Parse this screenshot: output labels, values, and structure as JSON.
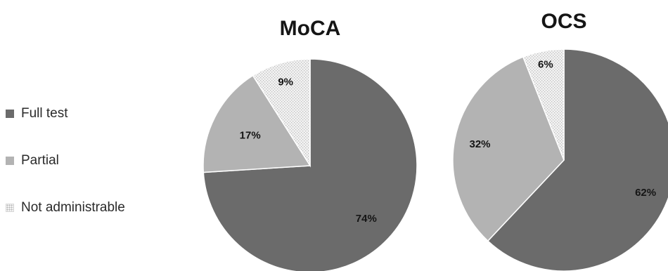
{
  "chart_data": [
    {
      "type": "pie",
      "title": "MoCA",
      "categories": [
        "Full test",
        "Partial",
        "Not administrable"
      ],
      "values": [
        74,
        17,
        9
      ],
      "value_labels": [
        "74%",
        "17%",
        "9%"
      ]
    },
    {
      "type": "pie",
      "title": "OCS",
      "categories": [
        "Full test",
        "Partial",
        "Not administrable"
      ],
      "values": [
        62,
        32,
        6
      ],
      "value_labels": [
        "62%",
        "32%",
        "6%"
      ]
    }
  ],
  "legend": {
    "position": "left",
    "items": [
      {
        "label": "Full test",
        "color": "#6b6b6b"
      },
      {
        "label": "Partial",
        "color": "#b3b3b3"
      },
      {
        "label": "Not administrable",
        "color": "#e8e8e8",
        "pattern": "dotted"
      }
    ]
  }
}
